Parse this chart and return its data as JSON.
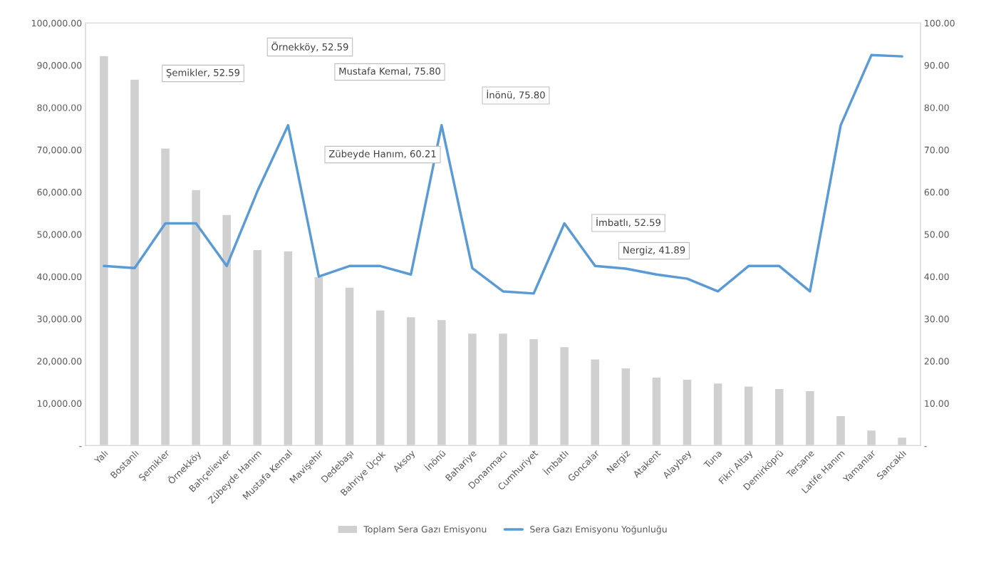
{
  "chart_data": {
    "type": "bar",
    "categories": [
      "Yalı",
      "Bostanlı",
      "Şemikler",
      "Örnekköy",
      "Bahçelievler",
      "Zübeyde Hanım",
      "Mustafa Kemal",
      "Mavişehir",
      "Dedebaşı",
      "Bahriye Üçok",
      "Aksoy",
      "İnönü",
      "Bahariye",
      "Donanmacı",
      "Cumhuriyet",
      "İmbatlı",
      "Goncalar",
      "Nergiz",
      "Atakent",
      "Alaybey",
      "Tuna",
      "Fikri Altay",
      "Demirköprü",
      "Tersane",
      "Latife Hanım",
      "Yamanlar",
      "Sancaklı"
    ],
    "series": [
      {
        "name": "Toplam Sera Gazı Emisyonu",
        "type": "bar",
        "color": "#d0d0d0",
        "values": [
          92300,
          86700,
          70400,
          60600,
          54700,
          46400,
          46100,
          40000,
          37500,
          32100,
          30500,
          29800,
          26600,
          26600,
          25300,
          23400,
          20500,
          18400,
          16200,
          15700,
          14800,
          14100,
          13500,
          13000,
          7100,
          3700,
          2000
        ]
      },
      {
        "name": "Sera Gazı Emisyonu Yoğunluğu",
        "type": "line",
        "axis": "y2",
        "color": "#5b9bd5",
        "values": [
          42.5,
          42.0,
          52.59,
          52.59,
          42.5,
          60.21,
          75.8,
          40.0,
          42.5,
          42.5,
          40.5,
          75.8,
          42.0,
          36.5,
          36.0,
          52.59,
          42.5,
          41.89,
          40.5,
          39.5,
          36.5,
          42.5,
          42.5,
          36.5,
          75.8,
          92.4,
          92.1
        ]
      }
    ],
    "ylim": [
      0,
      100000
    ],
    "yticks": [
      {
        "value": 0,
        "label": "-"
      },
      {
        "value": 10000,
        "label": "10,000.00"
      },
      {
        "value": 20000,
        "label": "20,000.00"
      },
      {
        "value": 30000,
        "label": "30,000.00"
      },
      {
        "value": 40000,
        "label": "40,000.00"
      },
      {
        "value": 50000,
        "label": "50,000.00"
      },
      {
        "value": 60000,
        "label": "60,000.00"
      },
      {
        "value": 70000,
        "label": "70,000.00"
      },
      {
        "value": 80000,
        "label": "80,000.00"
      },
      {
        "value": 90000,
        "label": "90,000.00"
      },
      {
        "value": 100000,
        "label": "100,000.00"
      }
    ],
    "y2lim": [
      0,
      100
    ],
    "y2ticks": [
      {
        "value": 0,
        "label": "-"
      },
      {
        "value": 10,
        "label": "10.00"
      },
      {
        "value": 20,
        "label": "20.00"
      },
      {
        "value": 30,
        "label": "30.00"
      },
      {
        "value": 40,
        "label": "40.00"
      },
      {
        "value": 50,
        "label": "50.00"
      },
      {
        "value": 60,
        "label": "60.00"
      },
      {
        "value": 70,
        "label": "70.00"
      },
      {
        "value": 80,
        "label": "80.00"
      },
      {
        "value": 90,
        "label": "90.00"
      },
      {
        "value": 100,
        "label": "100.00"
      }
    ],
    "annotations": [
      "Şemikler, 52.59",
      "Örnekköy, 52.59",
      "Mustafa Kemal, 75.80",
      "İnönü, 75.80",
      "Zübeyde Hanım, 60.21",
      "İmbatlı, 52.59",
      "Nergiz, 41.89"
    ],
    "legend": "bottom",
    "grid": false,
    "marker": "none",
    "line_style": "solid"
  }
}
